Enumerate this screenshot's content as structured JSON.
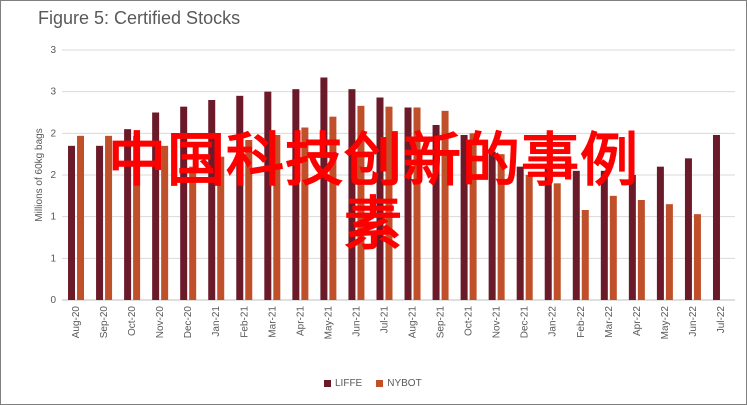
{
  "chart_data": {
    "type": "bar",
    "title": "Figure 5: Certified Stocks",
    "ylabel": "Millions of 60kg bags",
    "ylim": [
      0,
      3
    ],
    "yticks": [
      "0",
      "1",
      "1",
      "2",
      "2",
      "3",
      "3"
    ],
    "categories": [
      "Aug-20",
      "Sep-20",
      "Oct-20",
      "Nov-20",
      "Dec-20",
      "Jan-21",
      "Feb-21",
      "Mar-21",
      "Apr-21",
      "May-21",
      "Jun-21",
      "Jul-21",
      "Aug-21",
      "Sep-21",
      "Oct-21",
      "Nov-21",
      "Dec-21",
      "Jan-22",
      "Feb-22",
      "Mar-22",
      "Apr-22",
      "May-22",
      "Jun-22",
      "Jul-22"
    ],
    "series": [
      {
        "name": "LIFFE",
        "color": "#6b1a2a",
        "values": [
          1.85,
          1.85,
          2.05,
          2.25,
          2.32,
          2.4,
          2.45,
          2.5,
          2.53,
          2.67,
          2.53,
          2.43,
          2.31,
          2.1,
          1.98,
          1.78,
          1.6,
          1.6,
          1.55,
          1.55,
          1.5,
          1.6,
          1.7,
          1.98
        ]
      },
      {
        "name": "NYBOT",
        "color": "#c0502a",
        "values": [
          1.97,
          1.97,
          1.97,
          1.85,
          1.6,
          1.72,
          1.92,
          1.98,
          2.07,
          2.2,
          2.33,
          2.32,
          2.31,
          2.27,
          2.0,
          1.75,
          1.5,
          1.4,
          1.08,
          1.25,
          1.2,
          1.15,
          1.03,
          null
        ]
      }
    ],
    "legend": "bottom",
    "grid": true
  },
  "overlay_text": [
    "中国科技创新的事例",
    "素"
  ]
}
